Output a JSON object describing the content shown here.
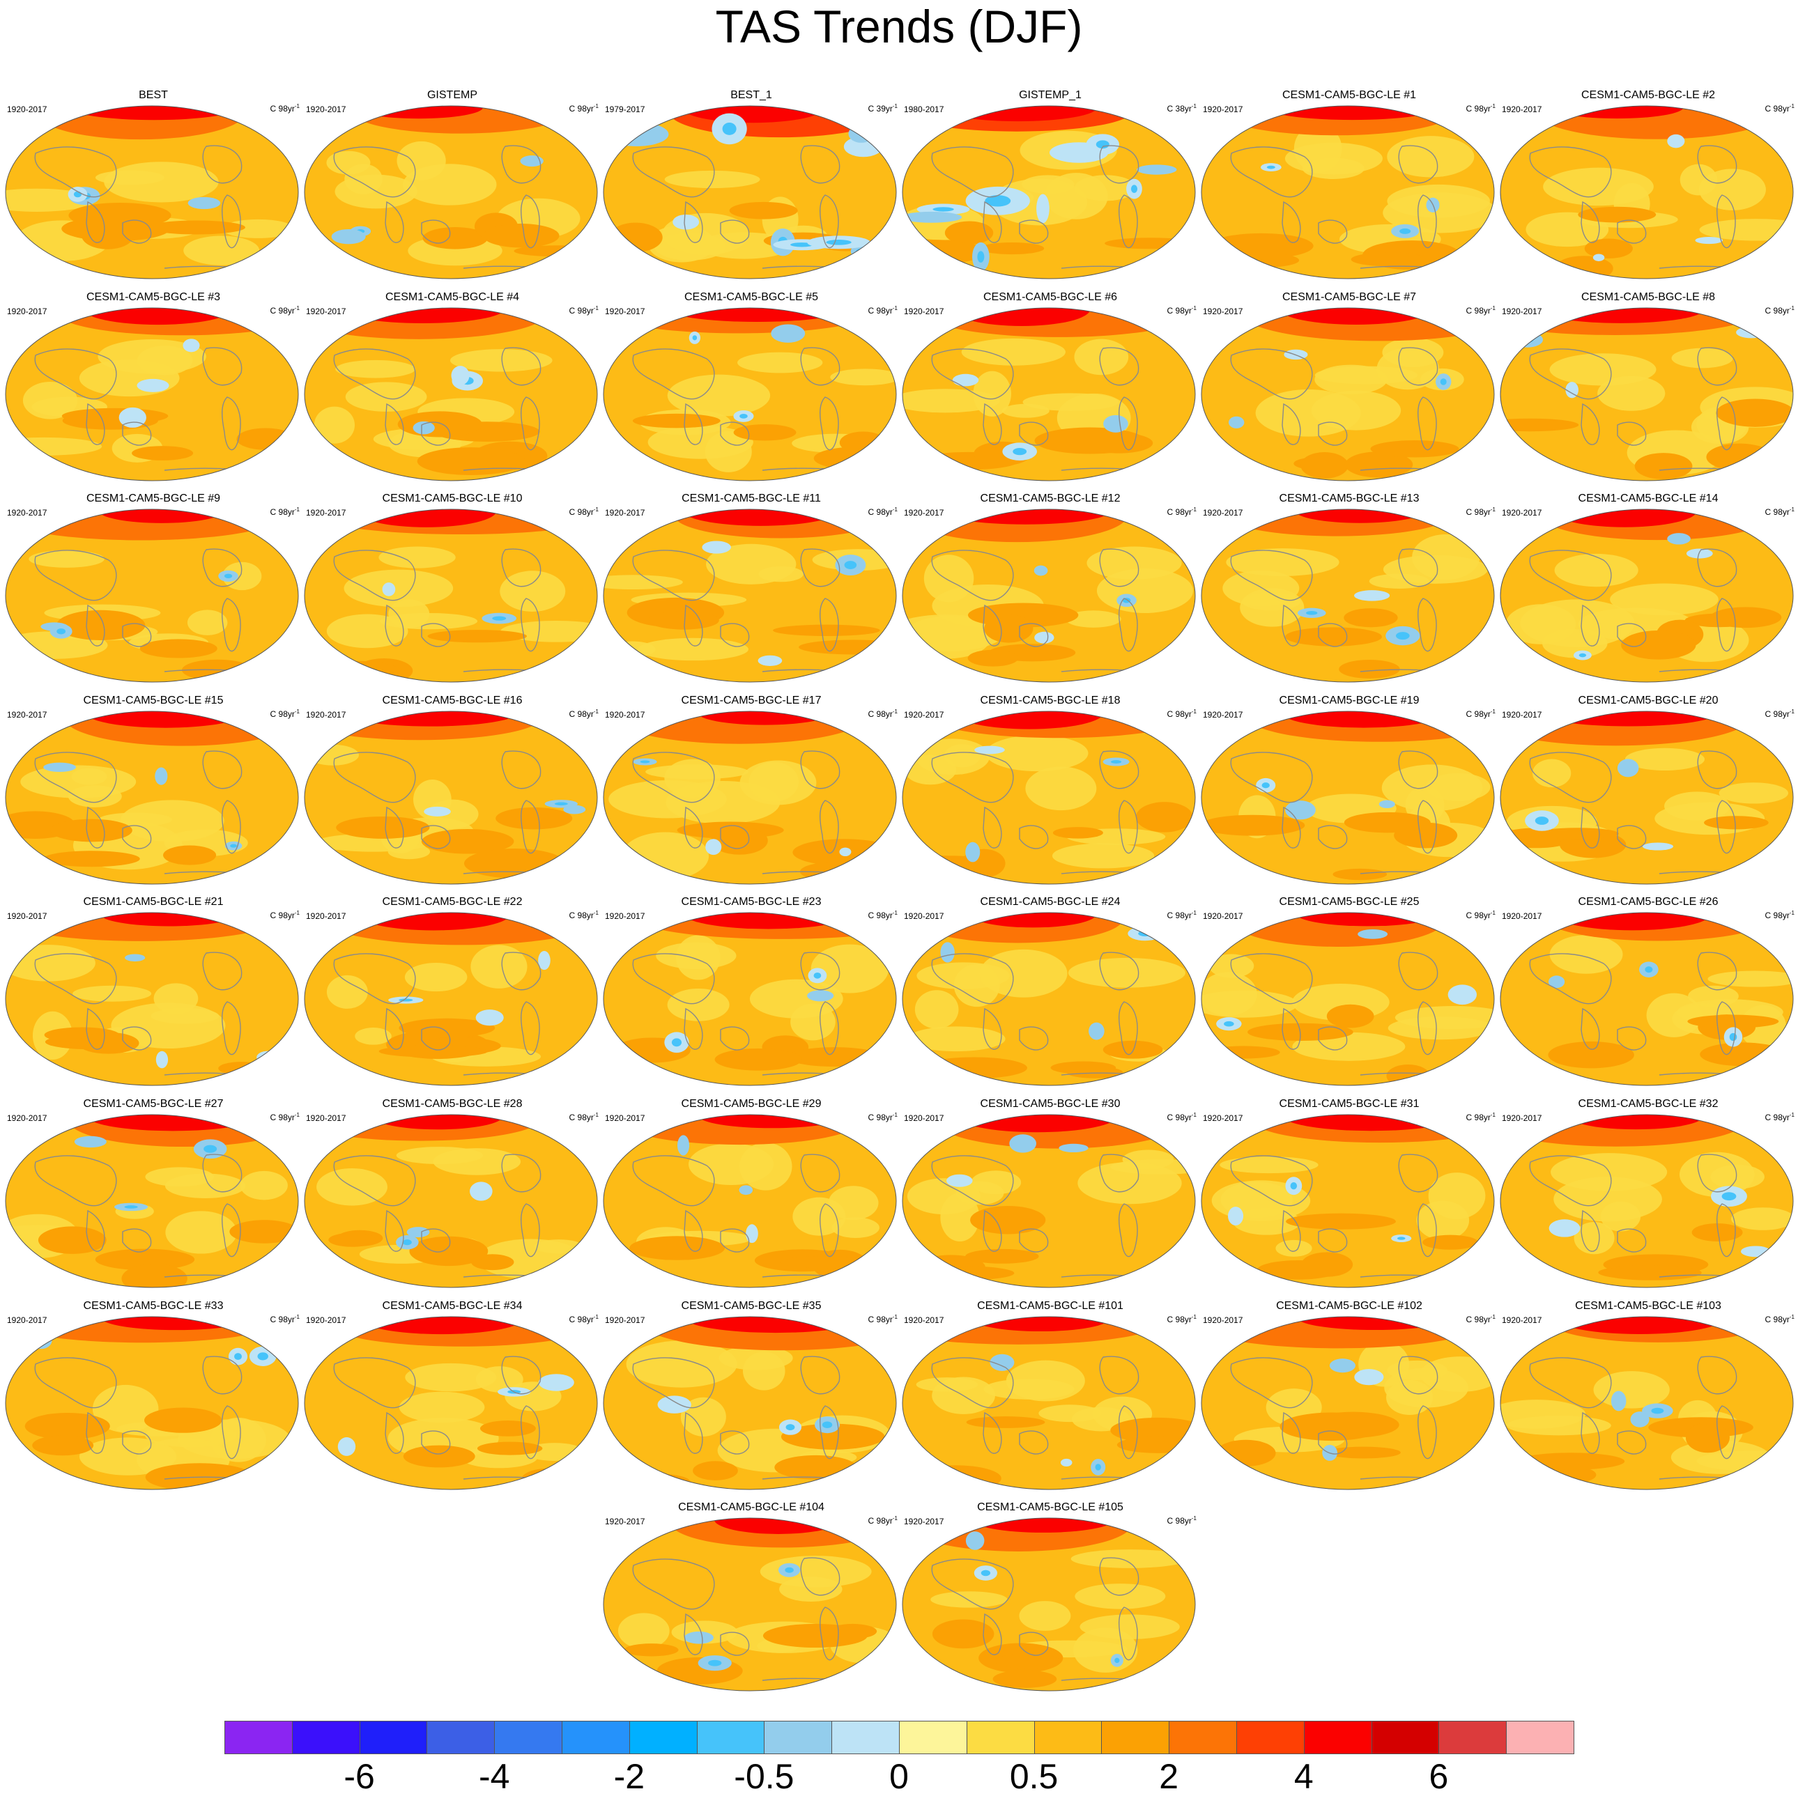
{
  "title": "TAS Trends (DJF)",
  "chart_data": {
    "type": "heatmap",
    "description_type": "multi-panel global map",
    "units_template": "C {n}yr",
    "panels": [
      {
        "title": "BEST",
        "period": "1920-2017",
        "units": "C 98yr",
        "sup": "-1"
      },
      {
        "title": "GISTEMP",
        "period": "1920-2017",
        "units": "C 98yr",
        "sup": "-1"
      },
      {
        "title": "BEST_1",
        "period": "1979-2017",
        "units": "C 39yr",
        "sup": "-1"
      },
      {
        "title": "GISTEMP_1",
        "period": "1980-2017",
        "units": "C 38yr",
        "sup": "-1"
      },
      {
        "title": "CESM1-CAM5-BGC-LE #1",
        "period": "1920-2017",
        "units": "C 98yr",
        "sup": "-1"
      },
      {
        "title": "CESM1-CAM5-BGC-LE #2",
        "period": "1920-2017",
        "units": "C 98yr",
        "sup": "-1"
      },
      {
        "title": "CESM1-CAM5-BGC-LE #3",
        "period": "1920-2017",
        "units": "C 98yr",
        "sup": "-1"
      },
      {
        "title": "CESM1-CAM5-BGC-LE #4",
        "period": "1920-2017",
        "units": "C 98yr",
        "sup": "-1"
      },
      {
        "title": "CESM1-CAM5-BGC-LE #5",
        "period": "1920-2017",
        "units": "C 98yr",
        "sup": "-1"
      },
      {
        "title": "CESM1-CAM5-BGC-LE #6",
        "period": "1920-2017",
        "units": "C 98yr",
        "sup": "-1"
      },
      {
        "title": "CESM1-CAM5-BGC-LE #7",
        "period": "1920-2017",
        "units": "C 98yr",
        "sup": "-1"
      },
      {
        "title": "CESM1-CAM5-BGC-LE #8",
        "period": "1920-2017",
        "units": "C 98yr",
        "sup": "-1"
      },
      {
        "title": "CESM1-CAM5-BGC-LE #9",
        "period": "1920-2017",
        "units": "C 98yr",
        "sup": "-1"
      },
      {
        "title": "CESM1-CAM5-BGC-LE #10",
        "period": "1920-2017",
        "units": "C 98yr",
        "sup": "-1"
      },
      {
        "title": "CESM1-CAM5-BGC-LE #11",
        "period": "1920-2017",
        "units": "C 98yr",
        "sup": "-1"
      },
      {
        "title": "CESM1-CAM5-BGC-LE #12",
        "period": "1920-2017",
        "units": "C 98yr",
        "sup": "-1"
      },
      {
        "title": "CESM1-CAM5-BGC-LE #13",
        "period": "1920-2017",
        "units": "C 98yr",
        "sup": "-1"
      },
      {
        "title": "CESM1-CAM5-BGC-LE #14",
        "period": "1920-2017",
        "units": "C 98yr",
        "sup": "-1"
      },
      {
        "title": "CESM1-CAM5-BGC-LE #15",
        "period": "1920-2017",
        "units": "C 98yr",
        "sup": "-1"
      },
      {
        "title": "CESM1-CAM5-BGC-LE #16",
        "period": "1920-2017",
        "units": "C 98yr",
        "sup": "-1"
      },
      {
        "title": "CESM1-CAM5-BGC-LE #17",
        "period": "1920-2017",
        "units": "C 98yr",
        "sup": "-1"
      },
      {
        "title": "CESM1-CAM5-BGC-LE #18",
        "period": "1920-2017",
        "units": "C 98yr",
        "sup": "-1"
      },
      {
        "title": "CESM1-CAM5-BGC-LE #19",
        "period": "1920-2017",
        "units": "C 98yr",
        "sup": "-1"
      },
      {
        "title": "CESM1-CAM5-BGC-LE #20",
        "period": "1920-2017",
        "units": "C 98yr",
        "sup": "-1"
      },
      {
        "title": "CESM1-CAM5-BGC-LE #21",
        "period": "1920-2017",
        "units": "C 98yr",
        "sup": "-1"
      },
      {
        "title": "CESM1-CAM5-BGC-LE #22",
        "period": "1920-2017",
        "units": "C 98yr",
        "sup": "-1"
      },
      {
        "title": "CESM1-CAM5-BGC-LE #23",
        "period": "1920-2017",
        "units": "C 98yr",
        "sup": "-1"
      },
      {
        "title": "CESM1-CAM5-BGC-LE #24",
        "period": "1920-2017",
        "units": "C 98yr",
        "sup": "-1"
      },
      {
        "title": "CESM1-CAM5-BGC-LE #25",
        "period": "1920-2017",
        "units": "C 98yr",
        "sup": "-1"
      },
      {
        "title": "CESM1-CAM5-BGC-LE #26",
        "period": "1920-2017",
        "units": "C 98yr",
        "sup": "-1"
      },
      {
        "title": "CESM1-CAM5-BGC-LE #27",
        "period": "1920-2017",
        "units": "C 98yr",
        "sup": "-1"
      },
      {
        "title": "CESM1-CAM5-BGC-LE #28",
        "period": "1920-2017",
        "units": "C 98yr",
        "sup": "-1"
      },
      {
        "title": "CESM1-CAM5-BGC-LE #29",
        "period": "1920-2017",
        "units": "C 98yr",
        "sup": "-1"
      },
      {
        "title": "CESM1-CAM5-BGC-LE #30",
        "period": "1920-2017",
        "units": "C 98yr",
        "sup": "-1"
      },
      {
        "title": "CESM1-CAM5-BGC-LE #31",
        "period": "1920-2017",
        "units": "C 98yr",
        "sup": "-1"
      },
      {
        "title": "CESM1-CAM5-BGC-LE #32",
        "period": "1920-2017",
        "units": "C 98yr",
        "sup": "-1"
      },
      {
        "title": "CESM1-CAM5-BGC-LE #33",
        "period": "1920-2017",
        "units": "C 98yr",
        "sup": "-1"
      },
      {
        "title": "CESM1-CAM5-BGC-LE #34",
        "period": "1920-2017",
        "units": "C 98yr",
        "sup": "-1"
      },
      {
        "title": "CESM1-CAM5-BGC-LE #35",
        "period": "1920-2017",
        "units": "C 98yr",
        "sup": "-1"
      },
      {
        "title": "CESM1-CAM5-BGC-LE #101",
        "period": "1920-2017",
        "units": "C 98yr",
        "sup": "-1"
      },
      {
        "title": "CESM1-CAM5-BGC-LE #102",
        "period": "1920-2017",
        "units": "C 98yr",
        "sup": "-1"
      },
      {
        "title": "CESM1-CAM5-BGC-LE #103",
        "period": "1920-2017",
        "units": "C 98yr",
        "sup": "-1"
      },
      {
        "title": "CESM1-CAM5-BGC-LE #104",
        "period": "1920-2017",
        "units": "C 98yr",
        "sup": "-1"
      },
      {
        "title": "CESM1-CAM5-BGC-LE #105",
        "period": "1920-2017",
        "units": "C 98yr",
        "sup": "-1"
      }
    ],
    "colorbar": {
      "colors": [
        "#8b25f2",
        "#3b10fb",
        "#1f1ffa",
        "#3c5fe6",
        "#3579f0",
        "#2592fb",
        "#01b0ff",
        "#46c3fa",
        "#93cdec",
        "#bde3f6",
        "#fdf59a",
        "#fcdc43",
        "#fdbb16",
        "#fba104",
        "#fc7406",
        "#fe4004",
        "#fb0100",
        "#d40000",
        "#dc3b3c",
        "#fcb1b3"
      ],
      "labels": [
        "-6",
        "-4",
        "-2",
        "-0.5",
        "0",
        "0.5",
        "2",
        "4",
        "6"
      ],
      "label_boundary_index": [
        2,
        4,
        6,
        8,
        10,
        12,
        14,
        16,
        18
      ]
    }
  }
}
